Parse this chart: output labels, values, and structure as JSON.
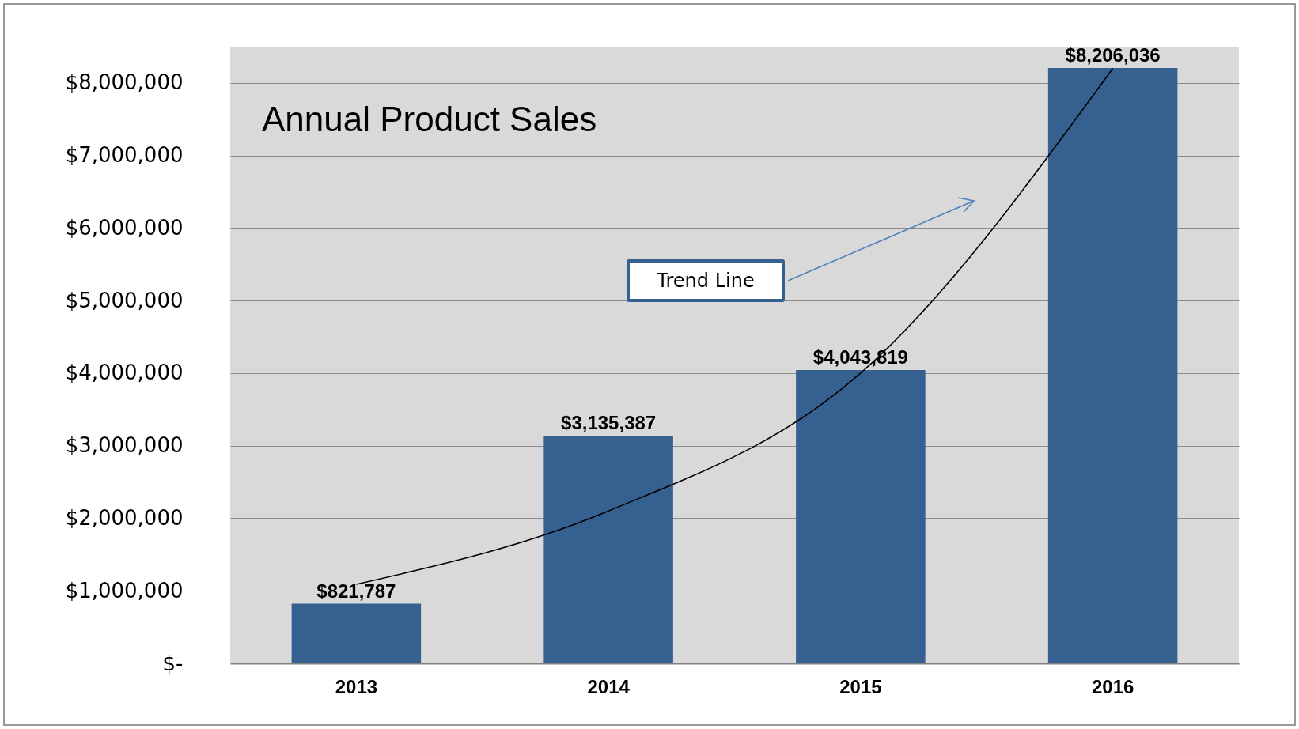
{
  "chart_data": {
    "type": "bar",
    "title": "Annual Product Sales",
    "categories": [
      "2013",
      "2014",
      "2015",
      "2016"
    ],
    "series": [
      {
        "color": "#35608f",
        "values": [
          821787,
          3135387,
          4043819,
          8206036
        ],
        "value_labels": [
          "$821,787",
          "$3,135,387",
          "$4,043,819",
          "$8,206,036"
        ]
      },
      {
        "type": "line",
        "color": "#000000",
        "values": [
          1090000,
          2100000,
          4000000,
          8200000
        ]
      }
    ],
    "ylim": [
      0,
      8500000
    ],
    "yticks": [
      {
        "value": 0,
        "label": "$-"
      },
      {
        "value": 1000000,
        "label": "$1,000,000"
      },
      {
        "value": 2000000,
        "label": "$2,000,000"
      },
      {
        "value": 3000000,
        "label": "$3,000,000"
      },
      {
        "value": 4000000,
        "label": "$4,000,000"
      },
      {
        "value": 5000000,
        "label": "$5,000,000"
      },
      {
        "value": 6000000,
        "label": "$6,000,000"
      },
      {
        "value": 7000000,
        "label": "$7,000,000"
      },
      {
        "value": 8000000,
        "label": "$8,000,000"
      }
    ],
    "grid": "y",
    "annotations": [
      "Trend Line"
    ]
  }
}
